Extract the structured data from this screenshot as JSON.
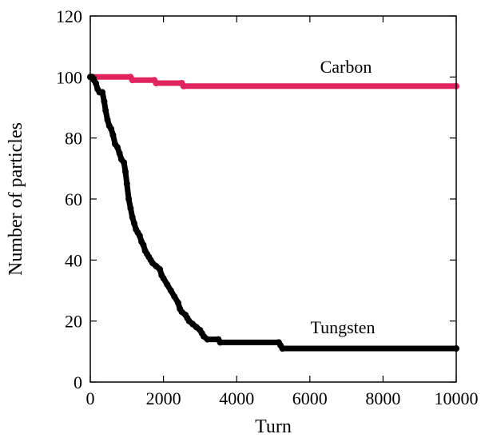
{
  "chart_data": {
    "type": "line",
    "title": "",
    "xlabel": "Turn",
    "ylabel": "Number of particles",
    "xlim": [
      0,
      10000
    ],
    "ylim": [
      0,
      120
    ],
    "xticks": [
      0,
      2000,
      4000,
      6000,
      8000,
      10000
    ],
    "yticks": [
      0,
      20,
      40,
      60,
      80,
      100,
      120
    ],
    "grid": false,
    "legend": "none",
    "series": [
      {
        "name": "Carbon",
        "color": "#e0245e",
        "points": [
          [
            0,
            100
          ],
          [
            1100,
            100
          ],
          [
            1150,
            99
          ],
          [
            1750,
            99
          ],
          [
            1800,
            98
          ],
          [
            2500,
            98
          ],
          [
            2550,
            97
          ],
          [
            10000,
            97
          ]
        ]
      },
      {
        "name": "Tungsten",
        "color": "#000000",
        "points": [
          [
            0,
            100
          ],
          [
            50,
            100
          ],
          [
            100,
            99
          ],
          [
            150,
            98
          ],
          [
            200,
            96
          ],
          [
            250,
            95
          ],
          [
            330,
            95
          ],
          [
            380,
            92
          ],
          [
            420,
            89
          ],
          [
            470,
            86
          ],
          [
            520,
            84
          ],
          [
            570,
            83
          ],
          [
            620,
            81
          ],
          [
            680,
            78
          ],
          [
            740,
            77
          ],
          [
            800,
            75
          ],
          [
            850,
            73
          ],
          [
            920,
            72
          ],
          [
            960,
            69
          ],
          [
            1000,
            65
          ],
          [
            1050,
            60
          ],
          [
            1100,
            57
          ],
          [
            1150,
            54
          ],
          [
            1200,
            52
          ],
          [
            1250,
            50
          ],
          [
            1300,
            49
          ],
          [
            1350,
            48
          ],
          [
            1400,
            46
          ],
          [
            1450,
            45
          ],
          [
            1500,
            43
          ],
          [
            1550,
            42
          ],
          [
            1600,
            41
          ],
          [
            1650,
            40
          ],
          [
            1700,
            39
          ],
          [
            1800,
            38
          ],
          [
            1900,
            37
          ],
          [
            1950,
            35
          ],
          [
            2000,
            34
          ],
          [
            2100,
            32
          ],
          [
            2200,
            30
          ],
          [
            2300,
            28
          ],
          [
            2400,
            26
          ],
          [
            2450,
            24
          ],
          [
            2500,
            23
          ],
          [
            2600,
            22
          ],
          [
            2650,
            21
          ],
          [
            2700,
            20
          ],
          [
            2800,
            19
          ],
          [
            2900,
            18
          ],
          [
            3000,
            17
          ],
          [
            3050,
            16
          ],
          [
            3100,
            15
          ],
          [
            3200,
            14
          ],
          [
            3500,
            14
          ],
          [
            3550,
            13
          ],
          [
            5150,
            13
          ],
          [
            5200,
            12
          ],
          [
            5250,
            11
          ],
          [
            10000,
            11
          ]
        ]
      }
    ]
  }
}
